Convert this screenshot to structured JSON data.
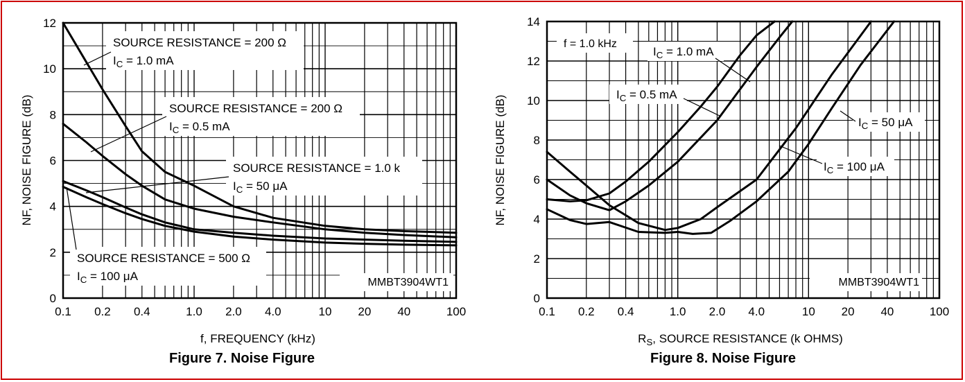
{
  "figures": [
    {
      "caption": "Figure 7. Noise Figure"
    },
    {
      "caption": "Figure 8. Noise Figure"
    }
  ],
  "chart_data": [
    {
      "type": "line",
      "xlabel": "f, FREQUENCY (kHz)",
      "ylabel": "NF, NOISE FIGURE (dB)",
      "xscale": "log",
      "xlim": [
        0.1,
        100
      ],
      "ylim": [
        0,
        12
      ],
      "x_ticks": [
        0.1,
        0.2,
        0.4,
        1.0,
        2.0,
        4.0,
        10,
        20,
        40,
        100
      ],
      "x_tick_labels": [
        "0.1",
        "0.2",
        "0.4",
        "1.0",
        "2.0",
        "4.0",
        "10",
        "20",
        "40",
        "100"
      ],
      "y_ticks": [
        0,
        2,
        4,
        6,
        8,
        10,
        12
      ],
      "y_tick_labels": [
        "0",
        "2",
        "4",
        "6",
        "8",
        "10",
        "12"
      ],
      "grid": true,
      "annotations": [
        "MMBT3904WT1"
      ],
      "series": [
        {
          "label_lines": [
            "SOURCE RESISTANCE = 200 Ω",
            "I_C = 1.0 mA"
          ],
          "x": [
            0.1,
            0.15,
            0.2,
            0.3,
            0.4,
            0.6,
            1.0,
            2.0,
            4.0,
            10,
            20,
            40,
            100
          ],
          "y": [
            12.0,
            10.3,
            9.1,
            7.5,
            6.4,
            5.5,
            4.9,
            4.0,
            3.5,
            3.15,
            3.0,
            2.92,
            2.85
          ]
        },
        {
          "label_lines": [
            "SOURCE RESISTANCE = 200 Ω",
            "I_C = 0.5 mA"
          ],
          "x": [
            0.1,
            0.15,
            0.2,
            0.3,
            0.4,
            0.6,
            1.0,
            2.0,
            4.0,
            10,
            20,
            40,
            100
          ],
          "y": [
            7.6,
            6.8,
            6.2,
            5.4,
            4.9,
            4.3,
            3.9,
            3.55,
            3.3,
            3.0,
            2.85,
            2.75,
            2.65
          ]
        },
        {
          "label_lines": [
            "SOURCE RESISTANCE = 1.0 k",
            "I_C = 50 μA"
          ],
          "x": [
            0.1,
            0.15,
            0.2,
            0.3,
            0.4,
            0.6,
            1.0,
            2.0,
            4.0,
            10,
            20,
            40,
            100
          ],
          "y": [
            5.1,
            4.7,
            4.4,
            3.95,
            3.65,
            3.3,
            3.0,
            2.85,
            2.72,
            2.6,
            2.55,
            2.5,
            2.45
          ]
        },
        {
          "label_lines": [
            "SOURCE RESISTANCE = 500 Ω",
            "I_C = 100 μA"
          ],
          "x": [
            0.1,
            0.15,
            0.2,
            0.3,
            0.4,
            0.6,
            1.0,
            2.0,
            4.0,
            10,
            20,
            40,
            100
          ],
          "y": [
            4.85,
            4.4,
            4.1,
            3.7,
            3.45,
            3.15,
            2.9,
            2.68,
            2.55,
            2.42,
            2.37,
            2.33,
            2.3
          ]
        }
      ]
    },
    {
      "type": "line",
      "xlabel": "R_S, SOURCE RESISTANCE (k OHMS)",
      "ylabel": "NF, NOISE FIGURE (dB)",
      "xscale": "log",
      "xlim": [
        0.1,
        100
      ],
      "ylim": [
        0,
        14
      ],
      "x_ticks": [
        0.1,
        0.2,
        0.4,
        1.0,
        2.0,
        4.0,
        10,
        20,
        40,
        100
      ],
      "x_tick_labels": [
        "0.1",
        "0.2",
        "0.4",
        "1.0",
        "2.0",
        "4.0",
        "10",
        "20",
        "40",
        "100"
      ],
      "y_ticks": [
        0,
        2,
        4,
        6,
        8,
        10,
        12,
        14
      ],
      "y_tick_labels": [
        "0",
        "2",
        "4",
        "6",
        "8",
        "10",
        "12",
        "14"
      ],
      "grid": true,
      "annotations": [
        "f = 1.0 kHz",
        "MMBT3904WT1"
      ],
      "series": [
        {
          "label_lines": [
            "I_C = 1.0 mA"
          ],
          "x": [
            0.1,
            0.15,
            0.2,
            0.3,
            0.4,
            0.6,
            1.0,
            1.5,
            2.0,
            3.0,
            4.0,
            5.5
          ],
          "y": [
            5.0,
            4.9,
            4.95,
            5.3,
            5.9,
            6.9,
            8.4,
            9.7,
            10.7,
            12.3,
            13.3,
            14.0
          ]
        },
        {
          "label_lines": [
            "I_C = 0.5 mA"
          ],
          "x": [
            0.1,
            0.15,
            0.2,
            0.3,
            0.4,
            0.6,
            1.0,
            2.0,
            4.0,
            6.0,
            7.5
          ],
          "y": [
            6.0,
            5.2,
            4.8,
            4.45,
            4.9,
            5.7,
            6.9,
            9.0,
            11.7,
            13.2,
            14.0
          ]
        },
        {
          "label_lines": [
            "I_C = 50 μA"
          ],
          "x": [
            0.1,
            0.15,
            0.2,
            0.3,
            0.5,
            0.8,
            1.0,
            1.5,
            2.0,
            4.0,
            8.0,
            15,
            30
          ],
          "y": [
            7.4,
            6.4,
            5.7,
            4.7,
            3.8,
            3.45,
            3.55,
            4.0,
            4.6,
            6.0,
            8.6,
            11.3,
            14.0
          ]
        },
        {
          "label_lines": [
            "I_C = 100 μA"
          ],
          "x": [
            0.1,
            0.15,
            0.2,
            0.3,
            0.5,
            0.8,
            1.0,
            1.3,
            1.8,
            2.5,
            4.0,
            7.0,
            10,
            15,
            25,
            45
          ],
          "y": [
            4.5,
            3.95,
            3.75,
            3.85,
            3.35,
            3.3,
            3.35,
            3.25,
            3.3,
            3.9,
            4.9,
            6.4,
            7.8,
            9.6,
            11.8,
            14.0
          ]
        }
      ]
    }
  ]
}
